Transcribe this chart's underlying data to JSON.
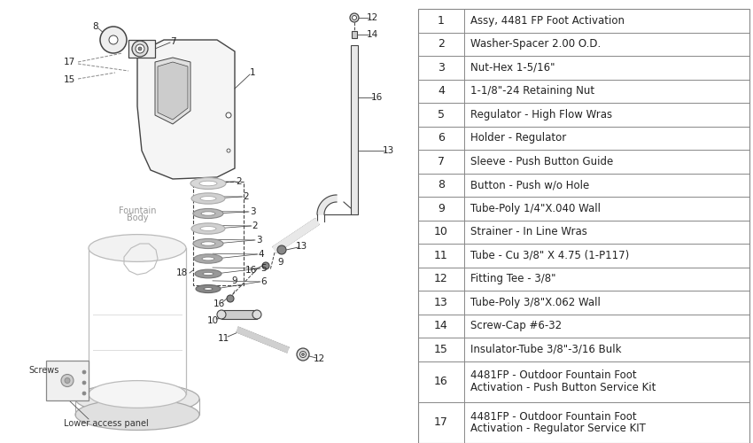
{
  "bg_color": "#ffffff",
  "parts": [
    [
      "1",
      "Assy, 4481 FP Foot Activation"
    ],
    [
      "2",
      "Washer-Spacer 2.00 O.D."
    ],
    [
      "3",
      "Nut-Hex 1-5/16\""
    ],
    [
      "4",
      "1-1/8\"-24 Retaining Nut"
    ],
    [
      "5",
      "Regulator - High Flow Wras"
    ],
    [
      "6",
      "Holder - Regulator"
    ],
    [
      "7",
      "Sleeve - Push Button Guide"
    ],
    [
      "8",
      "Button - Push w/o Hole"
    ],
    [
      "9",
      "Tube-Poly 1/4\"X.040 Wall"
    ],
    [
      "10",
      "Strainer - In Line Wras"
    ],
    [
      "11",
      "Tube - Cu 3/8\" X 4.75 (1-P117)"
    ],
    [
      "12",
      "Fitting Tee - 3/8\""
    ],
    [
      "13",
      "Tube-Poly 3/8\"X.062 Wall"
    ],
    [
      "14",
      "Screw-Cap #6-32"
    ],
    [
      "15",
      "Insulator-Tube 3/8\"-3/16 Bulk"
    ],
    [
      "16",
      "4481FP - Outdoor Fountain Foot\nActivation - Push Button Service Kit"
    ],
    [
      "17",
      "4481FP - Outdoor Fountain Foot\nActivation - Regulator Service KIT"
    ]
  ]
}
